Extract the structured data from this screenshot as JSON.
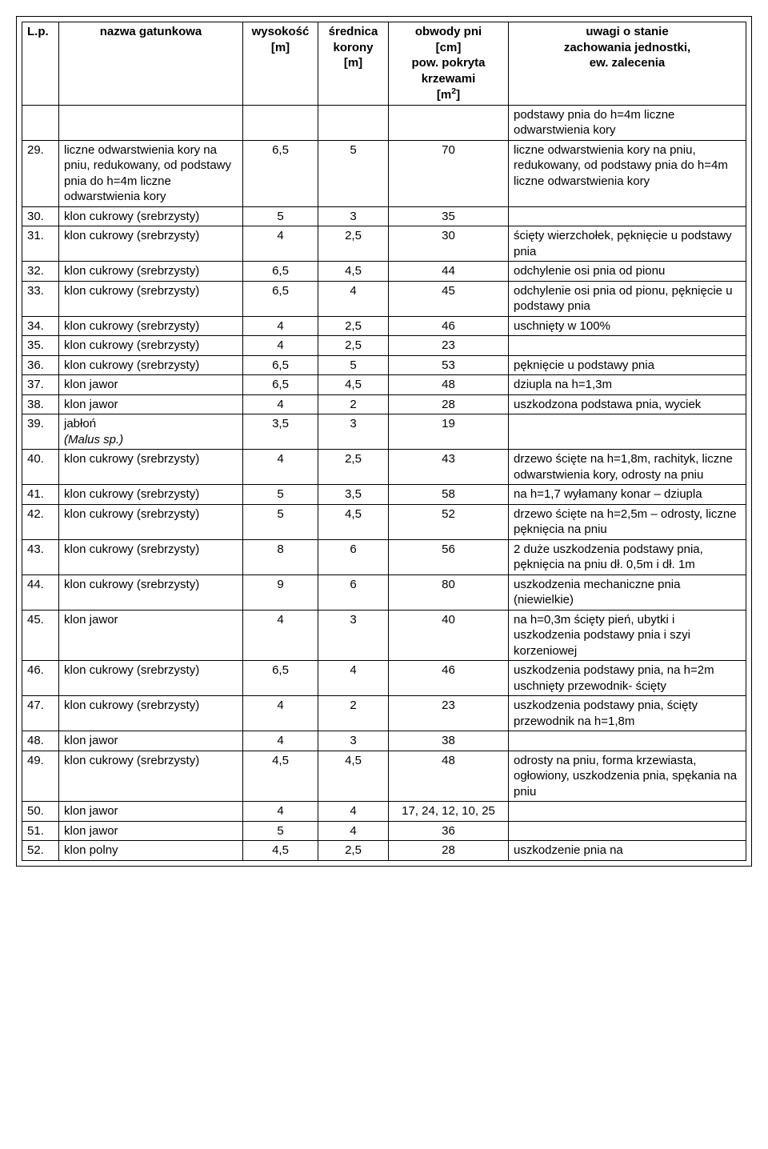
{
  "header": {
    "lp": "L.p.",
    "name": "nazwa gatunkowa",
    "h": "wysokość\n[m]",
    "d": "średnica\nkorony\n[m]",
    "c_line1": "obwody pni",
    "c_line2": "[cm]",
    "c_line3": "pow. pokryta",
    "c_line4": "krzewami",
    "c_line5_prefix": "[m",
    "c_line5_sup": "2",
    "c_line5_suffix": "]",
    "u": "uwagi o stanie\nzachowania jednostki,\new. zalecenia"
  },
  "rows": [
    {
      "lp": "",
      "name": "",
      "h": "",
      "d": "",
      "c": "",
      "u": "podstawy pnia do h=4m liczne odwarstwienia kory"
    },
    {
      "lp": "29.",
      "name": "liczne odwarstwienia kory na pniu, redukowany, od podstawy pnia do h=4m liczne odwarstwienia kory",
      "h": "6,5",
      "d": "5",
      "c": "70",
      "u": "liczne odwarstwienia kory na pniu, redukowany, od podstawy pnia do h=4m liczne odwarstwienia kory"
    },
    {
      "lp": "30.",
      "name": "klon cukrowy (srebrzysty)",
      "h": "5",
      "d": "3",
      "c": "35",
      "u": ""
    },
    {
      "lp": "31.",
      "name": "klon cukrowy (srebrzysty)",
      "h": "4",
      "d": "2,5",
      "c": "30",
      "u": "ścięty wierzchołek, pęknięcie u podstawy pnia"
    },
    {
      "lp": "32.",
      "name": "klon cukrowy (srebrzysty)",
      "h": "6,5",
      "d": "4,5",
      "c": "44",
      "u": "odchylenie osi pnia od pionu"
    },
    {
      "lp": "33.",
      "name": "klon cukrowy (srebrzysty)",
      "h": "6,5",
      "d": "4",
      "c": "45",
      "u": "odchylenie osi pnia od pionu, pęknięcie u podstawy pnia"
    },
    {
      "lp": "34.",
      "name": "klon cukrowy (srebrzysty)",
      "h": "4",
      "d": "2,5",
      "c": "46",
      "u": "uschnięty w 100%"
    },
    {
      "lp": "35.",
      "name": "klon cukrowy (srebrzysty)",
      "h": "4",
      "d": "2,5",
      "c": "23",
      "u": ""
    },
    {
      "lp": "36.",
      "name": "klon cukrowy (srebrzysty)",
      "h": "6,5",
      "d": "5",
      "c": "53",
      "u": "pęknięcie u podstawy pnia"
    },
    {
      "lp": "37.",
      "name": "klon jawor",
      "h": "6,5",
      "d": "4,5",
      "c": "48",
      "u": "dziupla na h=1,3m"
    },
    {
      "lp": "38.",
      "name": "klon jawor",
      "h": "4",
      "d": "2",
      "c": "28",
      "u": "uszkodzona podstawa pnia, wyciek"
    },
    {
      "lp": "39.",
      "name": "jabłoń",
      "name_italic": "(Malus sp.)",
      "h": "3,5",
      "d": "3",
      "c": "19",
      "u": ""
    },
    {
      "lp": "40.",
      "name": "klon cukrowy (srebrzysty)",
      "h": "4",
      "d": "2,5",
      "c": "43",
      "u": "drzewo ścięte na h=1,8m, rachityk, liczne odwarstwienia kory, odrosty na pniu"
    },
    {
      "lp": "41.",
      "name": "klon cukrowy (srebrzysty)",
      "h": "5",
      "d": "3,5",
      "c": "58",
      "u": "na h=1,7 wyłamany konar – dziupla"
    },
    {
      "lp": "42.",
      "name": "klon cukrowy (srebrzysty)",
      "h": "5",
      "d": "4,5",
      "c": "52",
      "u": "drzewo ścięte na h=2,5m – odrosty, liczne pęknięcia na pniu"
    },
    {
      "lp": "43.",
      "name": "klon cukrowy (srebrzysty)",
      "h": "8",
      "d": "6",
      "c": "56",
      "u": "2 duże uszkodzenia podstawy pnia, pęknięcia na pniu dł. 0,5m i dł. 1m"
    },
    {
      "lp": "44.",
      "name": "klon cukrowy (srebrzysty)",
      "h": "9",
      "d": "6",
      "c": "80",
      "u": "uszkodzenia mechaniczne pnia (niewielkie)"
    },
    {
      "lp": "45.",
      "name": "klon jawor",
      "h": "4",
      "d": "3",
      "c": "40",
      "u": "na h=0,3m ścięty pień, ubytki i uszkodzenia podstawy pnia i szyi korzeniowej"
    },
    {
      "lp": "46.",
      "name": "klon cukrowy (srebrzysty)",
      "h": "6,5",
      "d": "4",
      "c": "46",
      "u": "uszkodzenia podstawy pnia, na h=2m uschnięty przewodnik- ścięty"
    },
    {
      "lp": "47.",
      "name": "klon cukrowy (srebrzysty)",
      "h": "4",
      "d": "2",
      "c": "23",
      "u": "uszkodzenia podstawy pnia, ścięty przewodnik na h=1,8m"
    },
    {
      "lp": "48.",
      "name": "klon jawor",
      "h": "4",
      "d": "3",
      "c": "38",
      "u": ""
    },
    {
      "lp": "49.",
      "name": "klon cukrowy (srebrzysty)",
      "h": "4,5",
      "d": "4,5",
      "c": "48",
      "u": "odrosty na pniu, forma krzewiasta, ogłowiony, uszkodzenia pnia, spękania na pniu"
    },
    {
      "lp": "50.",
      "name": "klon jawor",
      "h": "4",
      "d": "4",
      "c": "17, 24, 12, 10, 25",
      "u": ""
    },
    {
      "lp": "51.",
      "name": "klon jawor",
      "h": "5",
      "d": "4",
      "c": "36",
      "u": ""
    },
    {
      "lp": "52.",
      "name": "klon polny",
      "h": "4,5",
      "d": "2,5",
      "c": "28",
      "u": "uszkodzenie pnia na"
    }
  ]
}
